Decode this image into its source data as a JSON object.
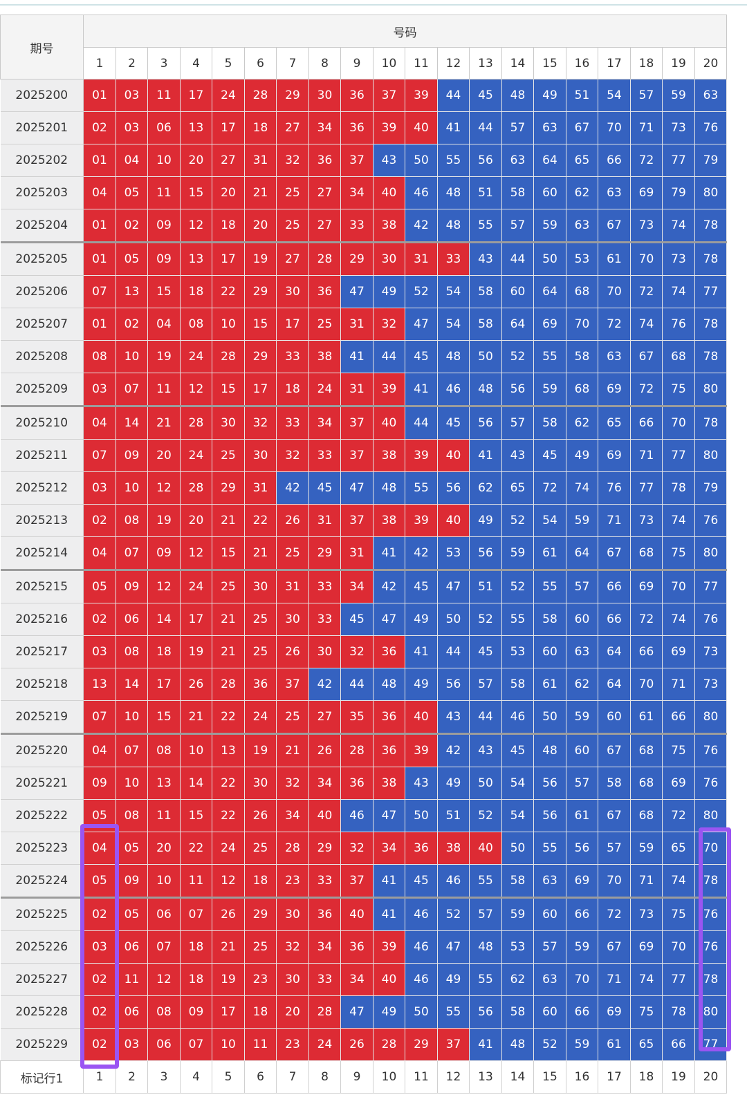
{
  "header": {
    "period_label": "期号",
    "numbers_label": "号码"
  },
  "columns": [
    "1",
    "2",
    "3",
    "4",
    "5",
    "6",
    "7",
    "8",
    "9",
    "10",
    "11",
    "12",
    "13",
    "14",
    "15",
    "16",
    "17",
    "18",
    "19",
    "20"
  ],
  "footer": {
    "label": "标记行1",
    "columns": [
      "1",
      "2",
      "3",
      "4",
      "5",
      "6",
      "7",
      "8",
      "9",
      "10",
      "11",
      "12",
      "13",
      "14",
      "15",
      "16",
      "17",
      "18",
      "19",
      "20"
    ]
  },
  "colors": {
    "low": "#dd2b34",
    "high": "#3562c0",
    "highlight": "#9a55f2"
  },
  "rows": [
    {
      "period": "2025200",
      "numbers": [
        "01",
        "03",
        "11",
        "17",
        "24",
        "28",
        "29",
        "30",
        "36",
        "37",
        "39",
        "44",
        "45",
        "48",
        "49",
        "51",
        "54",
        "57",
        "59",
        "63"
      ]
    },
    {
      "period": "2025201",
      "numbers": [
        "02",
        "03",
        "06",
        "13",
        "17",
        "18",
        "27",
        "34",
        "36",
        "39",
        "40",
        "41",
        "44",
        "57",
        "63",
        "67",
        "70",
        "71",
        "73",
        "76"
      ]
    },
    {
      "period": "2025202",
      "numbers": [
        "01",
        "04",
        "10",
        "20",
        "27",
        "31",
        "32",
        "36",
        "37",
        "43",
        "50",
        "55",
        "56",
        "63",
        "64",
        "65",
        "66",
        "72",
        "77",
        "79"
      ]
    },
    {
      "period": "2025203",
      "numbers": [
        "04",
        "05",
        "11",
        "15",
        "20",
        "21",
        "25",
        "27",
        "34",
        "40",
        "46",
        "48",
        "51",
        "58",
        "60",
        "62",
        "63",
        "69",
        "79",
        "80"
      ]
    },
    {
      "period": "2025204",
      "numbers": [
        "01",
        "02",
        "09",
        "12",
        "18",
        "20",
        "25",
        "27",
        "33",
        "38",
        "42",
        "48",
        "55",
        "57",
        "59",
        "63",
        "67",
        "73",
        "74",
        "78"
      ]
    },
    {
      "period": "2025205",
      "numbers": [
        "01",
        "05",
        "09",
        "13",
        "17",
        "19",
        "27",
        "28",
        "29",
        "30",
        "31",
        "33",
        "43",
        "44",
        "50",
        "53",
        "61",
        "70",
        "73",
        "78"
      ]
    },
    {
      "period": "2025206",
      "numbers": [
        "07",
        "13",
        "15",
        "18",
        "22",
        "29",
        "30",
        "36",
        "47",
        "49",
        "52",
        "54",
        "58",
        "60",
        "64",
        "68",
        "70",
        "72",
        "74",
        "77"
      ]
    },
    {
      "period": "2025207",
      "numbers": [
        "01",
        "02",
        "04",
        "08",
        "10",
        "15",
        "17",
        "25",
        "31",
        "32",
        "47",
        "54",
        "58",
        "64",
        "69",
        "70",
        "72",
        "74",
        "76",
        "78"
      ]
    },
    {
      "period": "2025208",
      "numbers": [
        "08",
        "10",
        "19",
        "24",
        "28",
        "29",
        "33",
        "38",
        "41",
        "44",
        "45",
        "48",
        "50",
        "52",
        "55",
        "58",
        "63",
        "67",
        "68",
        "78"
      ]
    },
    {
      "period": "2025209",
      "numbers": [
        "03",
        "07",
        "11",
        "12",
        "15",
        "17",
        "18",
        "24",
        "31",
        "39",
        "41",
        "46",
        "48",
        "56",
        "59",
        "68",
        "69",
        "72",
        "75",
        "80"
      ]
    },
    {
      "period": "2025210",
      "numbers": [
        "04",
        "14",
        "21",
        "28",
        "30",
        "32",
        "33",
        "34",
        "37",
        "40",
        "44",
        "45",
        "56",
        "57",
        "58",
        "62",
        "65",
        "66",
        "70",
        "78"
      ]
    },
    {
      "period": "2025211",
      "numbers": [
        "07",
        "09",
        "20",
        "24",
        "25",
        "30",
        "32",
        "33",
        "37",
        "38",
        "39",
        "40",
        "41",
        "43",
        "45",
        "49",
        "69",
        "71",
        "77",
        "80"
      ]
    },
    {
      "period": "2025212",
      "numbers": [
        "03",
        "10",
        "12",
        "28",
        "29",
        "31",
        "42",
        "45",
        "47",
        "48",
        "55",
        "56",
        "62",
        "65",
        "72",
        "74",
        "76",
        "77",
        "78",
        "79"
      ]
    },
    {
      "period": "2025213",
      "numbers": [
        "02",
        "08",
        "19",
        "20",
        "21",
        "22",
        "26",
        "31",
        "37",
        "38",
        "39",
        "40",
        "49",
        "52",
        "54",
        "59",
        "71",
        "73",
        "74",
        "76"
      ]
    },
    {
      "period": "2025214",
      "numbers": [
        "04",
        "07",
        "09",
        "12",
        "15",
        "21",
        "25",
        "29",
        "31",
        "41",
        "42",
        "53",
        "56",
        "59",
        "61",
        "64",
        "67",
        "68",
        "75",
        "80"
      ]
    },
    {
      "period": "2025215",
      "numbers": [
        "05",
        "09",
        "12",
        "24",
        "25",
        "30",
        "31",
        "33",
        "34",
        "42",
        "45",
        "47",
        "51",
        "52",
        "55",
        "57",
        "66",
        "69",
        "70",
        "77"
      ]
    },
    {
      "period": "2025216",
      "numbers": [
        "02",
        "06",
        "14",
        "17",
        "21",
        "25",
        "30",
        "33",
        "45",
        "47",
        "49",
        "50",
        "52",
        "55",
        "58",
        "60",
        "66",
        "72",
        "74",
        "76"
      ]
    },
    {
      "period": "2025217",
      "numbers": [
        "03",
        "08",
        "18",
        "19",
        "21",
        "25",
        "26",
        "30",
        "32",
        "36",
        "41",
        "44",
        "45",
        "53",
        "60",
        "63",
        "64",
        "66",
        "69",
        "73"
      ]
    },
    {
      "period": "2025218",
      "numbers": [
        "13",
        "14",
        "17",
        "26",
        "28",
        "36",
        "37",
        "42",
        "44",
        "48",
        "49",
        "56",
        "57",
        "58",
        "61",
        "62",
        "64",
        "70",
        "71",
        "73"
      ]
    },
    {
      "period": "2025219",
      "numbers": [
        "07",
        "10",
        "15",
        "21",
        "22",
        "24",
        "25",
        "27",
        "35",
        "36",
        "40",
        "43",
        "44",
        "46",
        "50",
        "59",
        "60",
        "61",
        "66",
        "80"
      ]
    },
    {
      "period": "2025220",
      "numbers": [
        "04",
        "07",
        "08",
        "10",
        "13",
        "19",
        "21",
        "26",
        "28",
        "36",
        "39",
        "42",
        "43",
        "45",
        "48",
        "60",
        "67",
        "68",
        "75",
        "76"
      ]
    },
    {
      "period": "2025221",
      "numbers": [
        "09",
        "10",
        "13",
        "14",
        "22",
        "30",
        "32",
        "34",
        "36",
        "38",
        "43",
        "49",
        "50",
        "54",
        "56",
        "57",
        "58",
        "68",
        "69",
        "76"
      ]
    },
    {
      "period": "2025222",
      "numbers": [
        "05",
        "08",
        "11",
        "15",
        "22",
        "26",
        "34",
        "40",
        "46",
        "47",
        "50",
        "51",
        "52",
        "54",
        "56",
        "61",
        "67",
        "68",
        "72",
        "80"
      ]
    },
    {
      "period": "2025223",
      "numbers": [
        "04",
        "05",
        "20",
        "22",
        "24",
        "25",
        "28",
        "29",
        "32",
        "34",
        "36",
        "38",
        "40",
        "50",
        "55",
        "56",
        "57",
        "59",
        "65",
        "70"
      ]
    },
    {
      "period": "2025224",
      "numbers": [
        "05",
        "09",
        "10",
        "11",
        "12",
        "18",
        "23",
        "33",
        "37",
        "41",
        "45",
        "46",
        "55",
        "58",
        "63",
        "69",
        "70",
        "71",
        "74",
        "78"
      ]
    },
    {
      "period": "2025225",
      "numbers": [
        "02",
        "05",
        "06",
        "07",
        "26",
        "29",
        "30",
        "36",
        "40",
        "41",
        "46",
        "52",
        "57",
        "59",
        "60",
        "66",
        "72",
        "73",
        "75",
        "76"
      ]
    },
    {
      "period": "2025226",
      "numbers": [
        "03",
        "06",
        "07",
        "18",
        "21",
        "25",
        "32",
        "34",
        "36",
        "39",
        "46",
        "47",
        "48",
        "53",
        "57",
        "59",
        "67",
        "69",
        "70",
        "76"
      ]
    },
    {
      "period": "2025227",
      "numbers": [
        "02",
        "11",
        "12",
        "18",
        "19",
        "23",
        "30",
        "33",
        "34",
        "40",
        "46",
        "49",
        "55",
        "62",
        "63",
        "70",
        "71",
        "74",
        "77",
        "78"
      ]
    },
    {
      "period": "2025228",
      "numbers": [
        "02",
        "06",
        "08",
        "09",
        "17",
        "18",
        "20",
        "28",
        "47",
        "49",
        "50",
        "55",
        "56",
        "58",
        "60",
        "66",
        "69",
        "75",
        "78",
        "80"
      ]
    },
    {
      "period": "2025229",
      "numbers": [
        "02",
        "03",
        "06",
        "07",
        "10",
        "11",
        "23",
        "24",
        "26",
        "28",
        "29",
        "37",
        "41",
        "48",
        "52",
        "59",
        "61",
        "65",
        "66",
        "77"
      ]
    }
  ]
}
